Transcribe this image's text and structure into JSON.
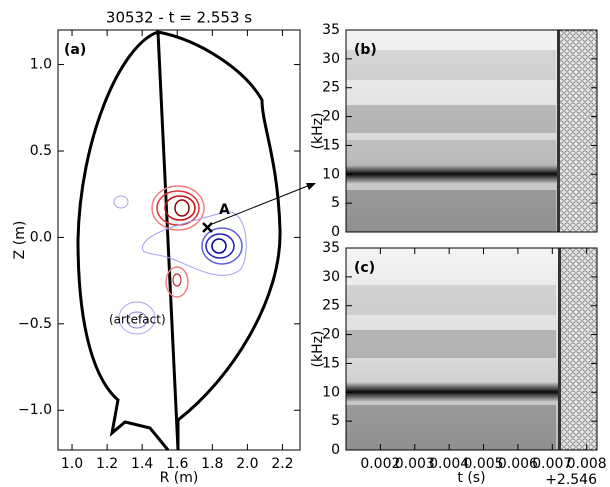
{
  "chart_data": [
    {
      "type": "contour",
      "title": "30532 - t = 2.553 s",
      "xlabel": "R (m)",
      "ylabel": "Z (m)",
      "annotations": [
        "(a)",
        "A",
        "(artefact)"
      ],
      "xlim": [
        0.92,
        2.3
      ],
      "ylim": [
        -1.23,
        1.2
      ],
      "xticks": [
        {
          "value": 1,
          "label": "1.0"
        },
        1.2,
        1.4,
        1.6,
        1.8,
        {
          "value": 2,
          "label": "2.0"
        },
        2.2
      ],
      "yticks": [
        {
          "value": -1,
          "label": "−1.0"
        },
        {
          "value": -0.5,
          "label": "−0.5"
        },
        {
          "value": 0,
          "label": "0.0"
        },
        0.5,
        {
          "value": 1,
          "label": "1.0"
        }
      ]
    },
    {
      "type": "spectrogram",
      "ylabel": "(kHz)",
      "annotations": [
        "(b)"
      ],
      "xlim": [
        0.001,
        0.0083
      ],
      "ylim": [
        0,
        35
      ],
      "yticks": [
        0,
        5,
        10,
        15,
        20,
        25,
        30,
        35
      ]
    },
    {
      "type": "spectrogram",
      "ylabel": "(kHz)",
      "xlabel": "t (s)",
      "x_offset_label": "+2.546",
      "annotations": [
        "(c)"
      ],
      "xlim": [
        0.001,
        0.0083
      ],
      "ylim": [
        0,
        35
      ],
      "yticks": [
        0,
        5,
        10,
        15,
        20,
        25,
        30,
        35
      ],
      "xticks": [
        0.002,
        0.003,
        0.004,
        0.005,
        0.006,
        0.007,
        0.008
      ]
    }
  ]
}
